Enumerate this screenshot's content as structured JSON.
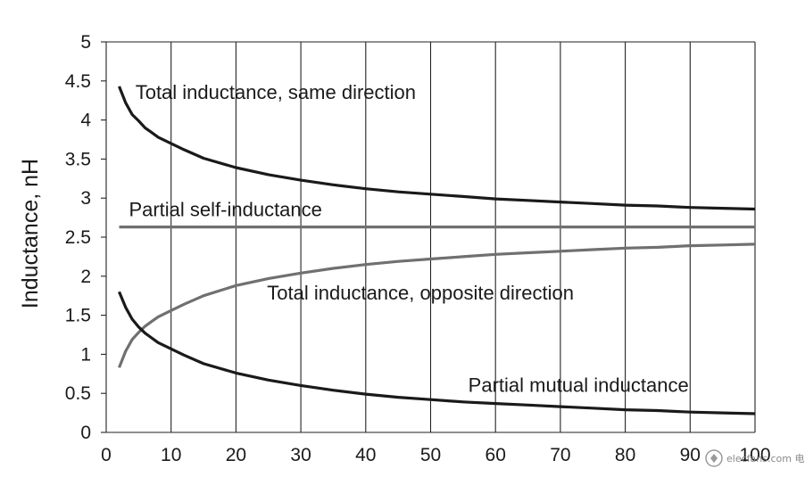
{
  "chart_data": {
    "type": "line",
    "title": "",
    "xlabel": "",
    "ylabel": "Inductance, nH",
    "xlim": [
      0,
      100
    ],
    "ylim": [
      0,
      5
    ],
    "x_ticks": [
      "0",
      "10",
      "20",
      "30",
      "40",
      "50",
      "60",
      "70",
      "80",
      "90",
      "100"
    ],
    "y_ticks": [
      "0",
      "0.5",
      "1",
      "1.5",
      "2",
      "2.5",
      "3",
      "3.5",
      "4",
      "4.5",
      "5"
    ],
    "grid": "vertical",
    "series": [
      {
        "name": "Total inductance, same direction",
        "color": "#1a1a1a",
        "points": [
          [
            2,
            4.43
          ],
          [
            3,
            4.22
          ],
          [
            4,
            4.07
          ],
          [
            5,
            3.99
          ],
          [
            6,
            3.9
          ],
          [
            7,
            3.84
          ],
          [
            8,
            3.78
          ],
          [
            10,
            3.7
          ],
          [
            12,
            3.62
          ],
          [
            15,
            3.51
          ],
          [
            20,
            3.39
          ],
          [
            25,
            3.3
          ],
          [
            30,
            3.23
          ],
          [
            35,
            3.17
          ],
          [
            40,
            3.12
          ],
          [
            45,
            3.08
          ],
          [
            50,
            3.05
          ],
          [
            55,
            3.02
          ],
          [
            60,
            2.99
          ],
          [
            65,
            2.97
          ],
          [
            70,
            2.95
          ],
          [
            75,
            2.93
          ],
          [
            80,
            2.91
          ],
          [
            85,
            2.9
          ],
          [
            90,
            2.88
          ],
          [
            95,
            2.87
          ],
          [
            100,
            2.86
          ]
        ]
      },
      {
        "name": "Partial self-inductance",
        "color": "#707070",
        "points": [
          [
            2,
            2.63
          ],
          [
            100,
            2.63
          ]
        ]
      },
      {
        "name": "Total inductance, opposite direction",
        "color": "#707070",
        "points": [
          [
            2,
            0.83
          ],
          [
            3,
            1.04
          ],
          [
            4,
            1.19
          ],
          [
            5,
            1.28
          ],
          [
            6,
            1.36
          ],
          [
            7,
            1.42
          ],
          [
            8,
            1.48
          ],
          [
            10,
            1.56
          ],
          [
            12,
            1.64
          ],
          [
            15,
            1.75
          ],
          [
            20,
            1.88
          ],
          [
            25,
            1.97
          ],
          [
            30,
            2.04
          ],
          [
            35,
            2.1
          ],
          [
            40,
            2.15
          ],
          [
            45,
            2.19
          ],
          [
            50,
            2.22
          ],
          [
            55,
            2.25
          ],
          [
            60,
            2.28
          ],
          [
            65,
            2.3
          ],
          [
            70,
            2.32
          ],
          [
            75,
            2.34
          ],
          [
            80,
            2.36
          ],
          [
            85,
            2.37
          ],
          [
            90,
            2.39
          ],
          [
            95,
            2.4
          ],
          [
            100,
            2.41
          ]
        ]
      },
      {
        "name": "Partial mutual inductance",
        "color": "#1a1a1a",
        "points": [
          [
            2,
            1.8
          ],
          [
            3,
            1.6
          ],
          [
            4,
            1.45
          ],
          [
            5,
            1.35
          ],
          [
            6,
            1.27
          ],
          [
            7,
            1.21
          ],
          [
            8,
            1.15
          ],
          [
            10,
            1.07
          ],
          [
            12,
            0.99
          ],
          [
            15,
            0.88
          ],
          [
            20,
            0.76
          ],
          [
            25,
            0.67
          ],
          [
            30,
            0.6
          ],
          [
            35,
            0.54
          ],
          [
            40,
            0.49
          ],
          [
            45,
            0.45
          ],
          [
            50,
            0.42
          ],
          [
            55,
            0.39
          ],
          [
            60,
            0.37
          ],
          [
            65,
            0.35
          ],
          [
            70,
            0.33
          ],
          [
            75,
            0.31
          ],
          [
            80,
            0.29
          ],
          [
            85,
            0.28
          ],
          [
            90,
            0.26
          ],
          [
            95,
            0.25
          ],
          [
            100,
            0.24
          ]
        ]
      }
    ],
    "annotations": [
      {
        "id": "same",
        "text": "Total inductance, same direction",
        "x": 4.5,
        "y": 4.27
      },
      {
        "id": "self",
        "text": "Partial self-inductance",
        "x": 3.5,
        "y": 2.77
      },
      {
        "id": "opposite",
        "text": "Total inductance, opposite direction",
        "x": 24.8,
        "y": 1.7
      },
      {
        "id": "mutual",
        "text": "Partial mutual inductance",
        "x": 55.8,
        "y": 0.52
      }
    ]
  },
  "watermark": {
    "text": "elecfans.com 电子发烧友"
  }
}
